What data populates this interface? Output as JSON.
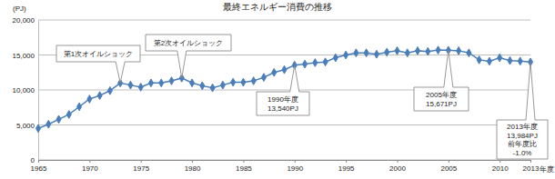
{
  "chart_data": {
    "type": "line",
    "title": "最終エネルギー消費の推移",
    "y_label": "(PJ)",
    "x_label": "年度",
    "x": [
      1965,
      1966,
      1967,
      1968,
      1969,
      1970,
      1971,
      1972,
      1973,
      1974,
      1975,
      1976,
      1977,
      1978,
      1979,
      1980,
      1981,
      1982,
      1983,
      1984,
      1985,
      1986,
      1987,
      1988,
      1989,
      1990,
      1991,
      1992,
      1993,
      1994,
      1995,
      1996,
      1997,
      1998,
      1999,
      2000,
      2001,
      2002,
      2003,
      2004,
      2005,
      2006,
      2007,
      2008,
      2009,
      2010,
      2011,
      2012,
      2013
    ],
    "values": [
      4500,
      5100,
      5800,
      6500,
      7600,
      8700,
      9200,
      9900,
      11000,
      10700,
      10400,
      11000,
      11000,
      11300,
      11700,
      11000,
      10600,
      10300,
      10700,
      11100,
      11100,
      11300,
      11800,
      12500,
      12900,
      13540,
      13700,
      13900,
      14000,
      14600,
      15000,
      15300,
      15300,
      15100,
      15400,
      15600,
      15300,
      15600,
      15500,
      15700,
      15671,
      15600,
      15300,
      14300,
      14100,
      14600,
      14200,
      14125,
      13984
    ],
    "color": "#4a7ebb",
    "marker": "diamond",
    "xlim": [
      1965,
      2013
    ],
    "xticks": [
      1965,
      1970,
      1975,
      1980,
      1985,
      1990,
      1995,
      2000,
      2005,
      2010,
      2013
    ],
    "ylim": [
      0,
      20000
    ],
    "yticks": [
      0,
      {
        "value": 5000,
        "label": "5,000"
      },
      {
        "value": 10000,
        "label": "10,000"
      },
      {
        "value": 15000,
        "label": "15,000"
      },
      {
        "value": 20000,
        "label": "20,000"
      }
    ],
    "grid": true,
    "annotations": [
      {
        "x": 1973,
        "y": 11000,
        "lines": [
          "第1次オイルショック"
        ]
      },
      {
        "x": 1979,
        "y": 11700,
        "lines": [
          "第2次オイルショック"
        ]
      },
      {
        "x": 1990,
        "y": 13540,
        "lines": [
          "1990年度",
          "13,540PJ"
        ]
      },
      {
        "x": 2005,
        "y": 15671,
        "lines": [
          "2005年度",
          "15,671PJ"
        ]
      },
      {
        "x": 2013,
        "y": 13984,
        "lines": [
          "2013年度",
          "13,984PJ",
          "前年度比",
          "-1.0%"
        ]
      }
    ]
  }
}
